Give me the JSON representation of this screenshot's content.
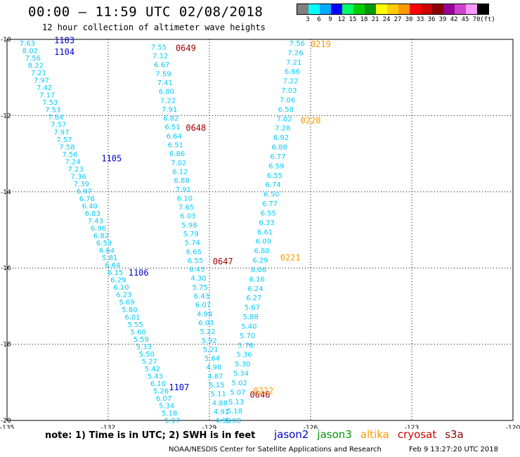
{
  "header": {
    "title": "00:00 – 11:59 UTC 02/08/2018",
    "subtitle": "12 hour collection of altimeter wave heights"
  },
  "legend": {
    "colors": [
      "#808080",
      "#00ffff",
      "#00aaff",
      "#0000ff",
      "#00ff66",
      "#00cc00",
      "#009900",
      "#ffff00",
      "#ffcc00",
      "#ff9900",
      "#ff0000",
      "#cc0000",
      "#880000",
      "#990099",
      "#cc44cc",
      "#ff99ff",
      "#000000"
    ],
    "labels": [
      "3",
      "6",
      "9",
      "12",
      "15",
      "18",
      "21",
      "24",
      "27",
      "30",
      "33",
      "36",
      "39",
      "42",
      "45",
      "70",
      "(ft)"
    ]
  },
  "axes": {
    "x_ticks": [
      "-135",
      "-132",
      "-129",
      "-126",
      "-123",
      "-120"
    ],
    "y_ticks": [
      "-10",
      "-12",
      "-14",
      "-16",
      "-18",
      "-20"
    ]
  },
  "chart_data": {
    "type": "scatter",
    "x_range": [
      -135,
      -120
    ],
    "y_range": [
      -20,
      -10
    ],
    "units": "feet",
    "tracks": [
      {
        "satellite": "jason2",
        "color": "#00ccff",
        "time_labels": [
          {
            "text": "1103",
            "lon": -133.3,
            "lat": -9.9
          },
          {
            "text": "1104",
            "lon": -133.3,
            "lat": -10.2
          },
          {
            "text": "1105",
            "lon": -131.9,
            "lat": -13.0
          },
          {
            "text": "1106",
            "lon": -131.1,
            "lat": -16.0
          },
          {
            "text": "1107",
            "lon": -129.9,
            "lat": -19.0
          }
        ],
        "start": {
          "lon": -134.4,
          "lat": -10.0
        },
        "end": {
          "lon": -130.1,
          "lat": -19.9
        },
        "values": [
          "7.63",
          "8.02",
          "7.56",
          "8.22",
          "7.21",
          "7.97",
          "7.42",
          "7.17",
          "7.53",
          "7.53",
          "7.84",
          "7.57",
          "7.97",
          "7.57",
          "7.58",
          "7.56",
          "7.24",
          "7.23",
          "7.36",
          "7.39",
          "6.97",
          "6.76",
          "6.40",
          "6.83",
          "7.43",
          "6.96",
          "6.82",
          "6.59",
          "6.64",
          "5.81",
          "6.64",
          "6.15",
          "6.29",
          "6.10",
          "6.23",
          "5.69",
          "5.80",
          "6.01",
          "5.55",
          "5.60",
          "5.59",
          "5.33",
          "5.50",
          "5.27",
          "5.42",
          "5.43",
          "6.10",
          "5.26",
          "6.07",
          "5.34",
          "5.18",
          "5.17"
        ]
      },
      {
        "satellite": "cryosat",
        "color": "#00ccff",
        "time_labels": [
          {
            "text": "0649",
            "lon": -129.7,
            "lat": -10.1
          },
          {
            "text": "0648",
            "lon": -129.4,
            "lat": -12.2
          },
          {
            "text": "0647",
            "lon": -128.6,
            "lat": -15.7
          },
          {
            "text": "0646",
            "lon": -127.5,
            "lat": -19.2
          }
        ],
        "start": {
          "lon": -130.5,
          "lat": -10.1
        },
        "end": {
          "lon": -128.6,
          "lat": -19.9
        },
        "values": [
          "7.55",
          "7.12",
          "6.67",
          "7.59",
          "7.41",
          "6.80",
          "7.22",
          "7.91",
          "6.82",
          "6.51",
          "6.64",
          "6.51",
          "6.86",
          "7.02",
          "6.12",
          "6.88",
          "7.91",
          "6.10",
          "7.65",
          "6.03",
          "5.98",
          "5.79",
          "5.74",
          "6.65",
          "6.55",
          "6.43",
          "4.30",
          "5.75",
          "6.43",
          "6.07",
          "4.99",
          "6.03",
          "5.22",
          "5.92",
          "5.21",
          "5.64",
          "4.98",
          "4.87",
          "5.15",
          "5.11",
          "4.88",
          "4.91",
          "4.98"
        ]
      },
      {
        "satellite": "altika",
        "color": "#00ccff",
        "time_labels": [
          {
            "text": "0219",
            "lon": -125.7,
            "lat": -10.0
          },
          {
            "text": "0220",
            "lon": -126.0,
            "lat": -12.0
          },
          {
            "text": "0221",
            "lon": -126.6,
            "lat": -15.6
          },
          {
            "text": "0222",
            "lon": -127.4,
            "lat": -19.1
          }
        ],
        "start": {
          "lon": -126.4,
          "lat": -10.0
        },
        "end": {
          "lon": -128.3,
          "lat": -19.9
        },
        "values": [
          "7.56",
          "7.26",
          "7.21",
          "6.66",
          "7.22",
          "7.03",
          "7.06",
          "6.58",
          "7.02",
          "7.28",
          "6.92",
          "6.88",
          "6.77",
          "6.59",
          "6.55",
          "6.74",
          "6.50",
          "6.77",
          "6.55",
          "6.33",
          "6.61",
          "6.09",
          "6.80",
          "6.29",
          "6.06",
          "6.16",
          "6.24",
          "6.27",
          "5.67",
          "5.88",
          "5.40",
          "5.70",
          "5.76",
          "5.36",
          "5.30",
          "5.34",
          "5.02",
          "5.07",
          "5.13",
          "5.18",
          "5.08"
        ]
      }
    ]
  },
  "footer": {
    "note": "note: 1) Time is in UTC; 2) SWH is in feet",
    "satellites": [
      {
        "name": "jason2",
        "color": "#0000cc"
      },
      {
        "name": "jason3",
        "color": "#009900"
      },
      {
        "name": "altika",
        "color": "#ff9900"
      },
      {
        "name": "cryosat",
        "color": "#cc0000"
      },
      {
        "name": "s3a",
        "color": "#880000"
      }
    ],
    "credit": "NOAA/NESDIS Center for Satellite Applications and Research",
    "timestamp": "Feb  9 13:27:20 UTC 2018"
  }
}
